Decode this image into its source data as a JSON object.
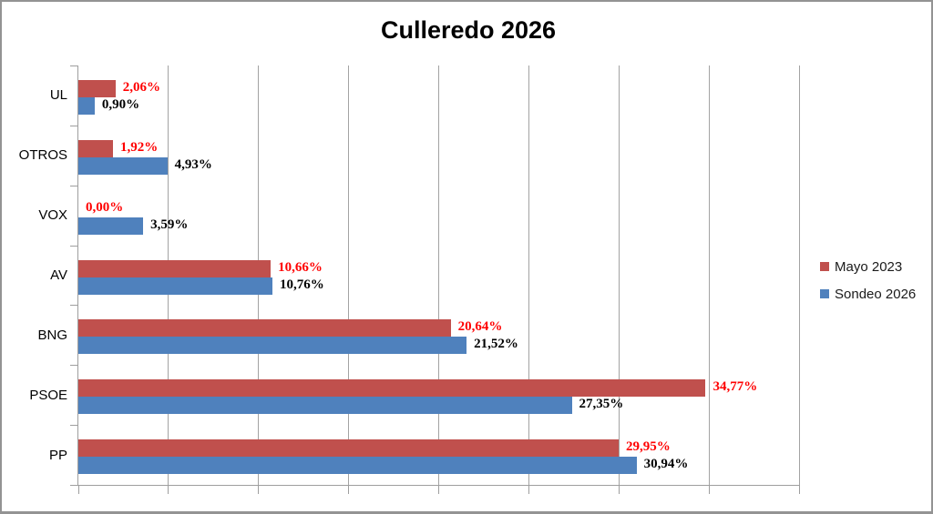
{
  "chart_data": {
    "type": "bar",
    "orientation": "horizontal",
    "title": "Culleredo 2026",
    "categories": [
      "UL",
      "OTROS",
      "VOX",
      "AV",
      "BNG",
      "PSOE",
      "PP"
    ],
    "series": [
      {
        "name": "Mayo 2023",
        "color": "#C0504D",
        "label_color": "#FF0000",
        "values": [
          2.06,
          1.92,
          0.0,
          10.66,
          20.64,
          34.77,
          29.95
        ],
        "value_labels": [
          "2,06%",
          "1,92%",
          "0,00%",
          "10,66%",
          "20,64%",
          "34,77%",
          "29,95%"
        ]
      },
      {
        "name": "Sondeo 2026",
        "color": "#4F81BD",
        "label_color": "#000000",
        "values": [
          0.9,
          4.93,
          3.59,
          10.76,
          21.52,
          27.35,
          30.94
        ],
        "value_labels": [
          "0,90%",
          "4,93%",
          "3,59%",
          "10,76%",
          "21,52%",
          "27,35%",
          "30,94%"
        ]
      }
    ],
    "xlim": [
      0,
      40
    ],
    "x_tick_interval": 5,
    "x_tick_labels_visible": false,
    "grid": true,
    "legend_position": "right"
  },
  "style_colors": {
    "gridline": "#a3a3a3",
    "axis": "#9e9e9e",
    "frame_border": "#939393",
    "title_color": "#000000",
    "background": "#ffffff"
  }
}
